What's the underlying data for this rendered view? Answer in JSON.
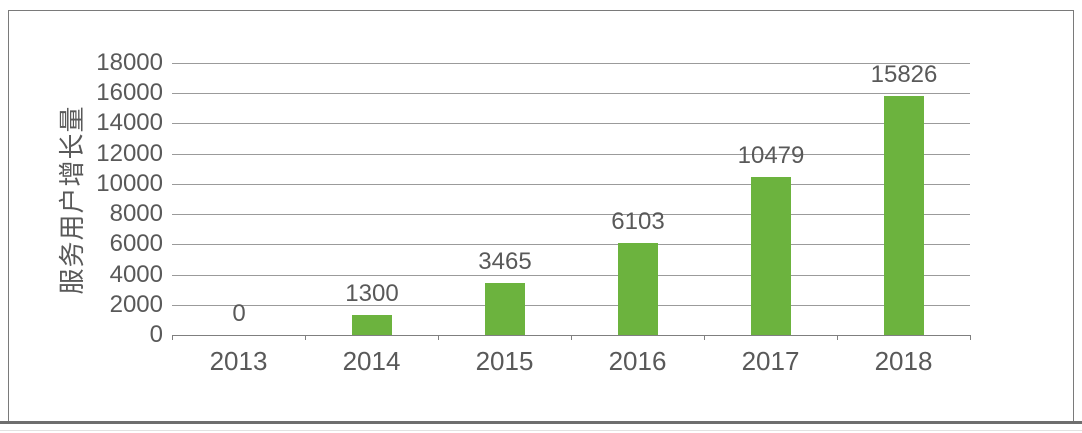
{
  "chart_data": {
    "type": "bar",
    "categories": [
      "2013",
      "2014",
      "2015",
      "2016",
      "2017",
      "2018"
    ],
    "values": [
      0,
      1300,
      3465,
      6103,
      10479,
      15826
    ],
    "data_labels": [
      "0",
      "1300",
      "3465",
      "6103",
      "10479",
      "15826"
    ],
    "title": "",
    "xlabel": "",
    "ylabel": "服务用户增长量",
    "ylim": [
      0,
      18000
    ],
    "ytick_step": 2000,
    "ytick_labels": [
      "0",
      "2000",
      "4000",
      "6000",
      "8000",
      "10000",
      "12000",
      "14000",
      "16000",
      "18000"
    ],
    "grid": true,
    "legend_position": "none",
    "bar_color": "#6cb33e",
    "gridline_color": "#9b9b9b",
    "axis_color": "#7f7f7f",
    "text_color": "#595959",
    "frame_border_color": "#7a7a7a"
  }
}
